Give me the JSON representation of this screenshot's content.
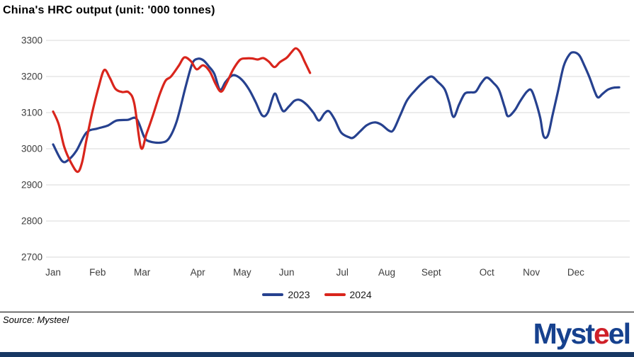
{
  "title": "China's HRC output (unit: '000 tonnes)",
  "source_note": "Source: Mysteel",
  "logo": {
    "part1": "Myst",
    "part2": "e",
    "part3": "el",
    "blue": "#16418e",
    "red": "#cf2028"
  },
  "colors": {
    "grid": "#d9d9d9",
    "tick_text": "#3d3d3d",
    "separator": "#000000",
    "bottom_bar": "#173763"
  },
  "chart_data": {
    "type": "line",
    "title": "China's HRC output (unit: '000 tonnes)",
    "unit": "'000 tonnes",
    "grid": "horizontal",
    "legend_position": "bottom-center",
    "x_axis": {
      "tick_labels": [
        "Jan",
        "Feb",
        "Mar",
        "Apr",
        "May",
        "Jun",
        "Jul",
        "Aug",
        "Sept",
        "Oct",
        "Nov",
        "Dec"
      ],
      "tick_weeks": [
        0,
        4,
        8,
        13,
        17,
        21,
        26,
        30,
        34,
        39,
        43,
        47
      ],
      "range_weeks": [
        -0.6,
        51.9
      ],
      "resolution": "weekly"
    },
    "y_axis": {
      "ticks": [
        3300,
        3200,
        3100,
        3000,
        2900,
        2800,
        2700
      ],
      "range": [
        2700,
        3300
      ]
    },
    "series": [
      {
        "name": "2023",
        "color": "#26418f",
        "points": [
          [
            0,
            3012
          ],
          [
            0.8,
            2966
          ],
          [
            1.4,
            2970
          ],
          [
            2.1,
            2995
          ],
          [
            3,
            3045
          ],
          [
            4,
            3056
          ],
          [
            4.9,
            3064
          ],
          [
            5.7,
            3078
          ],
          [
            6.7,
            3080
          ],
          [
            7.5,
            3083
          ],
          [
            8.2,
            3032
          ],
          [
            8.7,
            3020
          ],
          [
            9.7,
            3017
          ],
          [
            10.4,
            3028
          ],
          [
            11.1,
            3075
          ],
          [
            11.9,
            3170
          ],
          [
            12.5,
            3235
          ],
          [
            13,
            3249
          ],
          [
            13.5,
            3245
          ],
          [
            14,
            3228
          ],
          [
            14.5,
            3207
          ],
          [
            15,
            3163
          ],
          [
            15.5,
            3185
          ],
          [
            16,
            3201
          ],
          [
            16.4,
            3203
          ],
          [
            17,
            3190
          ],
          [
            17.6,
            3165
          ],
          [
            18.2,
            3130
          ],
          [
            18.8,
            3092
          ],
          [
            19.3,
            3100
          ],
          [
            19.9,
            3152
          ],
          [
            20.3,
            3128
          ],
          [
            20.7,
            3104
          ],
          [
            21.2,
            3117
          ],
          [
            21.7,
            3133
          ],
          [
            22.2,
            3135
          ],
          [
            22.8,
            3122
          ],
          [
            23.4,
            3100
          ],
          [
            23.9,
            3078
          ],
          [
            24.4,
            3098
          ],
          [
            24.8,
            3104
          ],
          [
            25.3,
            3082
          ],
          [
            25.9,
            3045
          ],
          [
            26.6,
            3032
          ],
          [
            27,
            3031
          ],
          [
            27.6,
            3048
          ],
          [
            28.2,
            3065
          ],
          [
            28.9,
            3073
          ],
          [
            29.5,
            3067
          ],
          [
            30.2,
            3050
          ],
          [
            30.6,
            3052
          ],
          [
            31.2,
            3092
          ],
          [
            31.8,
            3133
          ],
          [
            32.5,
            3160
          ],
          [
            33.3,
            3185
          ],
          [
            34,
            3200
          ],
          [
            34.6,
            3185
          ],
          [
            35.2,
            3165
          ],
          [
            35.6,
            3130
          ],
          [
            36,
            3088
          ],
          [
            36.5,
            3122
          ],
          [
            37,
            3152
          ],
          [
            37.5,
            3156
          ],
          [
            38,
            3158
          ],
          [
            38.5,
            3182
          ],
          [
            39,
            3197
          ],
          [
            39.6,
            3182
          ],
          [
            40.1,
            3162
          ],
          [
            40.6,
            3115
          ],
          [
            40.9,
            3090
          ],
          [
            41.5,
            3106
          ],
          [
            42,
            3132
          ],
          [
            42.6,
            3158
          ],
          [
            43,
            3162
          ],
          [
            43.4,
            3130
          ],
          [
            43.8,
            3085
          ],
          [
            44.1,
            3035
          ],
          [
            44.5,
            3038
          ],
          [
            44.9,
            3092
          ],
          [
            45.4,
            3160
          ],
          [
            45.9,
            3228
          ],
          [
            46.4,
            3260
          ],
          [
            46.8,
            3267
          ],
          [
            47.3,
            3259
          ],
          [
            47.7,
            3235
          ],
          [
            48.2,
            3200
          ],
          [
            48.7,
            3158
          ],
          [
            49,
            3142
          ],
          [
            49.4,
            3152
          ],
          [
            49.9,
            3164
          ],
          [
            50.4,
            3169
          ],
          [
            50.9,
            3170
          ]
        ]
      },
      {
        "name": "2024",
        "color": "#d9251c",
        "points": [
          [
            0,
            3103
          ],
          [
            0.5,
            3068
          ],
          [
            1,
            3005
          ],
          [
            1.6,
            2962
          ],
          [
            2.2,
            2936
          ],
          [
            2.6,
            2962
          ],
          [
            3,
            3025
          ],
          [
            3.5,
            3098
          ],
          [
            4.1,
            3172
          ],
          [
            4.6,
            3218
          ],
          [
            5.1,
            3196
          ],
          [
            5.6,
            3166
          ],
          [
            6.2,
            3157
          ],
          [
            6.8,
            3156
          ],
          [
            7.3,
            3125
          ],
          [
            7.9,
            3003
          ],
          [
            8.4,
            3042
          ],
          [
            9,
            3095
          ],
          [
            9.6,
            3152
          ],
          [
            10.1,
            3188
          ],
          [
            10.6,
            3200
          ],
          [
            11.3,
            3230
          ],
          [
            11.8,
            3253
          ],
          [
            12.4,
            3242
          ],
          [
            12.9,
            3220
          ],
          [
            13.5,
            3231
          ],
          [
            14.1,
            3213
          ],
          [
            14.6,
            3180
          ],
          [
            15.1,
            3158
          ],
          [
            15.6,
            3182
          ],
          [
            16.2,
            3220
          ],
          [
            16.8,
            3246
          ],
          [
            17.3,
            3250
          ],
          [
            17.9,
            3250
          ],
          [
            18.4,
            3247
          ],
          [
            18.9,
            3251
          ],
          [
            19.4,
            3241
          ],
          [
            19.9,
            3226
          ],
          [
            20.4,
            3240
          ],
          [
            21,
            3252
          ],
          [
            21.4,
            3266
          ],
          [
            21.8,
            3278
          ],
          [
            22.2,
            3268
          ],
          [
            22.6,
            3242
          ],
          [
            23.1,
            3210
          ]
        ]
      }
    ]
  }
}
